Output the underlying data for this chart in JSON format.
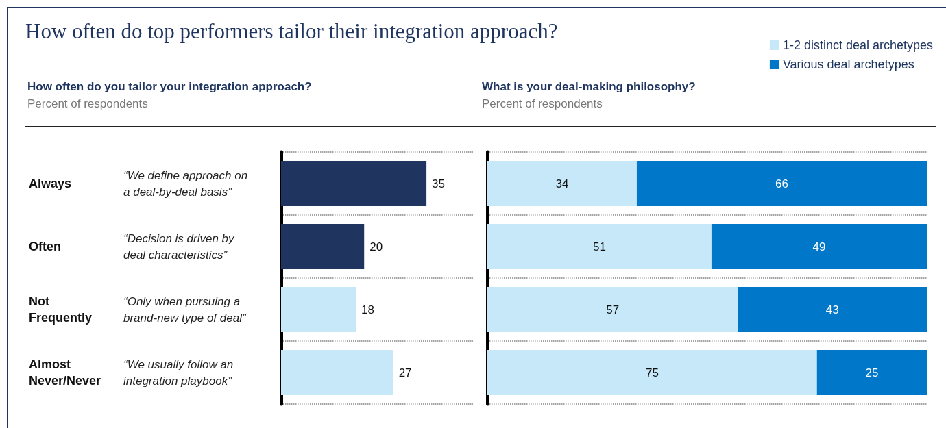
{
  "chart_data": [
    {
      "type": "bar",
      "orientation": "horizontal",
      "title": "How often do top performers tailor their integration approach?",
      "subtitle": "How often do you tailor your integration approach?",
      "xlabel": "Percent of respondents",
      "categories": [
        "Always",
        "Often",
        "Not Frequently",
        "Almost Never/Never"
      ],
      "values": [
        35,
        20,
        18,
        27
      ],
      "colors": [
        "#1f3560",
        "#1f3560",
        "#c6e8f8",
        "#c6e8f8"
      ],
      "annotations": [
        "“We define approach on a deal-by-deal basis”",
        "“Decision is driven by deal characteristics”",
        "“Only when pursuing a brand-new type of deal”",
        "“We usually follow an integration playbook”"
      ],
      "data_labels": true,
      "grid": "y",
      "legend": false
    },
    {
      "type": "bar",
      "orientation": "horizontal",
      "stacked": true,
      "subtitle": "What is your deal-making philosophy?",
      "xlabel": "Percent of respondents",
      "categories": [
        null,
        null,
        null,
        null
      ],
      "series": [
        {
          "name": "1-2 distinct deal archetypes",
          "color": "#c6e8f8",
          "values": [
            34,
            51,
            57,
            75
          ]
        },
        {
          "name": "Various deal archetypes",
          "color": "#0077c8",
          "values": [
            66,
            49,
            43,
            25
          ]
        }
      ],
      "data_labels": true,
      "grid": "y",
      "legend": "top right"
    }
  ]
}
